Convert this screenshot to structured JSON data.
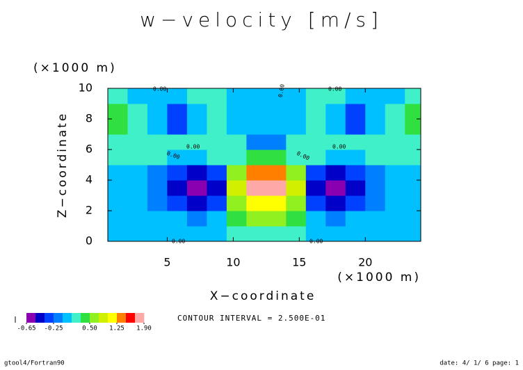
{
  "chart_data": {
    "type": "contour",
    "title": "w−velocity [m/s]",
    "xlabel": "X−coordinate",
    "ylabel": "Z−coordinate",
    "x_unit": "(×1000 m)",
    "y_unit": "(×1000 m)",
    "xlim": [
      0.5,
      24.2
    ],
    "ylim": [
      0,
      10
    ],
    "xticks": [
      5,
      10,
      15,
      20
    ],
    "yticks": [
      0,
      2,
      4,
      6,
      8,
      10
    ],
    "x": [
      1.25,
      2.75,
      4.25,
      5.75,
      7.25,
      8.75,
      10.25,
      11.75,
      13.25,
      14.75,
      16.25,
      17.75,
      19.25,
      20.75,
      22.25,
      23.75
    ],
    "z": [
      0.5,
      1.5,
      2.5,
      3.5,
      4.5,
      5.5,
      6.5,
      7.5,
      8.5,
      9.5
    ],
    "values": [
      [
        -0.05,
        -0.05,
        -0.05,
        -0.05,
        -0.08,
        -0.05,
        0.1,
        0.2,
        0.2,
        0.1,
        -0.05,
        -0.08,
        -0.05,
        -0.05,
        -0.05,
        -0.05
      ],
      [
        -0.05,
        -0.05,
        -0.08,
        -0.1,
        -0.15,
        -0.1,
        0.3,
        0.6,
        0.6,
        0.3,
        -0.1,
        -0.15,
        -0.1,
        -0.08,
        -0.05,
        -0.05
      ],
      [
        -0.05,
        -0.08,
        -0.15,
        -0.3,
        -0.45,
        -0.3,
        0.6,
        1.2,
        1.2,
        0.6,
        -0.3,
        -0.45,
        -0.3,
        -0.15,
        -0.08,
        -0.05
      ],
      [
        -0.05,
        -0.1,
        -0.2,
        -0.4,
        -0.6,
        -0.4,
        0.9,
        1.8,
        1.8,
        0.9,
        -0.4,
        -0.6,
        -0.4,
        -0.2,
        -0.1,
        -0.05
      ],
      [
        -0.05,
        -0.08,
        -0.15,
        -0.3,
        -0.45,
        -0.3,
        0.6,
        1.3,
        1.3,
        0.6,
        -0.3,
        -0.45,
        -0.3,
        -0.15,
        -0.08,
        -0.05
      ],
      [
        0.05,
        0.05,
        0.0,
        -0.05,
        -0.1,
        0.0,
        0.2,
        0.3,
        0.3,
        0.2,
        0.0,
        -0.1,
        -0.05,
        0.0,
        0.05,
        0.05
      ],
      [
        0.1,
        0.1,
        0.05,
        0.05,
        0.1,
        0.15,
        0.1,
        -0.2,
        -0.2,
        0.1,
        0.15,
        0.1,
        0.05,
        0.05,
        0.1,
        0.1
      ],
      [
        0.3,
        0.1,
        -0.1,
        -0.3,
        -0.1,
        0.1,
        -0.05,
        -0.05,
        -0.05,
        -0.05,
        0.1,
        -0.1,
        -0.3,
        -0.1,
        0.1,
        0.3
      ],
      [
        0.3,
        0.05,
        -0.1,
        -0.3,
        -0.1,
        0.1,
        -0.05,
        -0.05,
        -0.05,
        -0.05,
        0.1,
        -0.1,
        -0.3,
        -0.1,
        0.05,
        0.3
      ],
      [
        0.1,
        -0.05,
        -0.05,
        -0.1,
        0.05,
        0.1,
        -0.05,
        -0.05,
        -0.05,
        -0.05,
        0.1,
        0.05,
        -0.1,
        -0.05,
        -0.05,
        0.1
      ]
    ],
    "colorbar": {
      "levels": [
        -0.65,
        -0.5,
        -0.375,
        -0.25,
        -0.125,
        0,
        0.25,
        0.5,
        0.75,
        1.0,
        1.25,
        1.5,
        1.75,
        1.9
      ],
      "colors": [
        "#8a00b0",
        "#0000c8",
        "#0040ff",
        "#0080ff",
        "#00c0ff",
        "#40f0c8",
        "#30e040",
        "#90f020",
        "#d0f000",
        "#ffff00",
        "#ff8000",
        "#ff0000",
        "#ffa8a8"
      ],
      "ticks": [
        {
          "value": -0.65,
          "label": "-0.65"
        },
        {
          "value": -0.25,
          "label": "-0.25"
        },
        {
          "value": 0.5,
          "label": "0.50"
        },
        {
          "value": 1.25,
          "label": "1.25"
        },
        {
          "value": 1.9,
          "label": "1.90"
        }
      ]
    },
    "contour_labels": [
      "0.00",
      "0.00",
      "0.00",
      "0.00",
      "0.00",
      "0.00",
      "0.00",
      "0.00",
      "0.00"
    ],
    "contour_interval_text": "CONTOUR INTERVAL = 2.500E-01",
    "footer_left": "gtool4/Fortran90",
    "footer_right": "date: 4/ 1/ 6 page: 1"
  }
}
